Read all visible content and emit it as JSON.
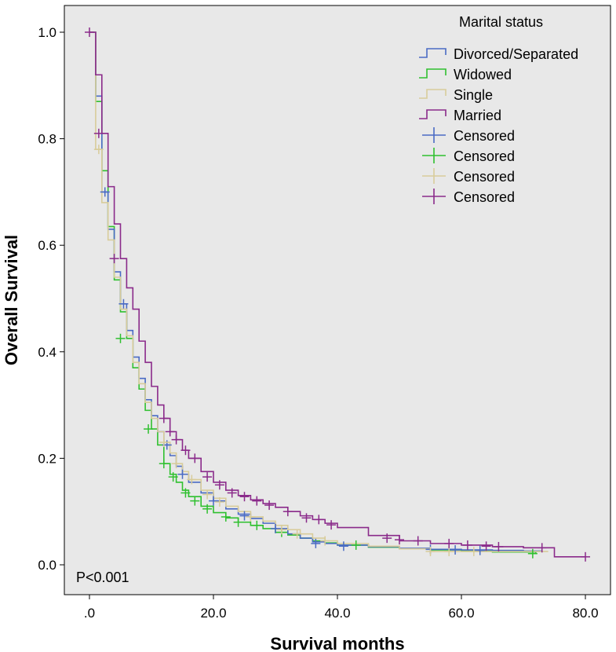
{
  "chart_data": {
    "type": "line",
    "subtype": "kaplan-meier",
    "xlabel": "Survival months",
    "ylabel": "Overall Survival",
    "xlim": [
      0,
      80
    ],
    "ylim": [
      0,
      1.0
    ],
    "x_ticks": [
      ".0",
      "20.0",
      "40.0",
      "60.0",
      "80.0"
    ],
    "x_tick_values": [
      0,
      20,
      40,
      60,
      80
    ],
    "y_ticks": [
      "0.0",
      "0.2",
      "0.4",
      "0.6",
      "0.8",
      "1.0"
    ],
    "y_tick_values": [
      0,
      0.2,
      0.4,
      0.6,
      0.8,
      1.0
    ],
    "grid": false,
    "background": "#e8e8e8",
    "legend": {
      "title": "Marital status",
      "position": "top-right",
      "entries": [
        {
          "label": "Divorced/Separated",
          "kind": "line",
          "color": "#4a6bc4"
        },
        {
          "label": "Widowed",
          "kind": "line",
          "color": "#2fc02f"
        },
        {
          "label": "Single",
          "kind": "line",
          "color": "#d8cc9a"
        },
        {
          "label": "Married",
          "kind": "line",
          "color": "#8a2a8a"
        },
        {
          "label": "Censored",
          "kind": "censor",
          "color": "#4a6bc4"
        },
        {
          "label": "Censored",
          "kind": "censor",
          "color": "#2fc02f"
        },
        {
          "label": "Censored",
          "kind": "censor",
          "color": "#d8cc9a"
        },
        {
          "label": "Censored",
          "kind": "censor",
          "color": "#8a2a8a"
        }
      ]
    },
    "annotation": "P<0.001",
    "series": [
      {
        "name": "Divorced/Separated",
        "color": "#4a6bc4",
        "x": [
          0,
          1,
          2,
          3,
          4,
          5,
          6,
          7,
          8,
          9,
          10,
          11,
          12,
          13,
          14,
          15,
          16,
          18,
          20,
          22,
          24,
          26,
          28,
          30,
          32,
          34,
          36,
          38,
          40,
          45,
          50,
          55,
          60,
          65,
          70,
          73
        ],
        "y": [
          1.0,
          0.88,
          0.7,
          0.63,
          0.55,
          0.49,
          0.44,
          0.39,
          0.35,
          0.31,
          0.28,
          0.25,
          0.225,
          0.205,
          0.185,
          0.17,
          0.155,
          0.135,
          0.12,
          0.105,
          0.095,
          0.087,
          0.078,
          0.068,
          0.058,
          0.05,
          0.043,
          0.04,
          0.037,
          0.034,
          0.031,
          0.029,
          0.028,
          0.027,
          0.026,
          0.026
        ],
        "censored": [
          [
            2.5,
            0.7
          ],
          [
            5.5,
            0.49
          ],
          [
            12.5,
            0.225
          ],
          [
            15,
            0.17
          ],
          [
            20,
            0.12
          ],
          [
            25,
            0.092
          ],
          [
            30,
            0.068
          ],
          [
            36.5,
            0.04
          ],
          [
            41,
            0.035
          ],
          [
            55,
            0.029
          ],
          [
            59,
            0.028
          ],
          [
            63,
            0.027
          ]
        ]
      },
      {
        "name": "Widowed",
        "color": "#2fc02f",
        "x": [
          0,
          1,
          2,
          3,
          4,
          5,
          6,
          7,
          8,
          9,
          10,
          11,
          12,
          13,
          14,
          15,
          16,
          18,
          20,
          22,
          24,
          26,
          28,
          30,
          32,
          34,
          36,
          38,
          40,
          45,
          50,
          55,
          60,
          65,
          72
        ],
        "y": [
          1.0,
          0.87,
          0.74,
          0.635,
          0.535,
          0.475,
          0.425,
          0.37,
          0.33,
          0.29,
          0.255,
          0.225,
          0.19,
          0.17,
          0.155,
          0.14,
          0.128,
          0.11,
          0.098,
          0.088,
          0.08,
          0.074,
          0.068,
          0.061,
          0.056,
          0.05,
          0.045,
          0.041,
          0.037,
          0.033,
          0.03,
          0.028,
          0.026,
          0.024,
          0.021
        ],
        "censored": [
          [
            5,
            0.425
          ],
          [
            9.5,
            0.255
          ],
          [
            12,
            0.19
          ],
          [
            13.5,
            0.165
          ],
          [
            15.5,
            0.135
          ],
          [
            17,
            0.12
          ],
          [
            19,
            0.105
          ],
          [
            22,
            0.09
          ],
          [
            24,
            0.08
          ],
          [
            27,
            0.074
          ],
          [
            31,
            0.061
          ],
          [
            43,
            0.037
          ],
          [
            71.5,
            0.021
          ]
        ]
      },
      {
        "name": "Single",
        "color": "#d8cc9a",
        "x": [
          0,
          1,
          2,
          3,
          4,
          5,
          6,
          7,
          8,
          9,
          10,
          11,
          12,
          13,
          14,
          15,
          16,
          18,
          20,
          22,
          24,
          26,
          28,
          30,
          32,
          34,
          36,
          38,
          40,
          45,
          50,
          55,
          60,
          65,
          70,
          74
        ],
        "y": [
          1.0,
          0.78,
          0.68,
          0.61,
          0.54,
          0.48,
          0.43,
          0.38,
          0.34,
          0.305,
          0.275,
          0.25,
          0.23,
          0.21,
          0.19,
          0.175,
          0.16,
          0.14,
          0.125,
          0.11,
          0.1,
          0.09,
          0.082,
          0.074,
          0.066,
          0.058,
          0.05,
          0.045,
          0.04,
          0.035,
          0.03,
          0.025,
          0.025,
          0.025,
          0.025,
          0.025
        ],
        "censored": [
          [
            1.5,
            0.78
          ],
          [
            12,
            0.23
          ],
          [
            14,
            0.19
          ],
          [
            16.5,
            0.16
          ],
          [
            19,
            0.132
          ],
          [
            21,
            0.118
          ],
          [
            26,
            0.09
          ],
          [
            31,
            0.066
          ],
          [
            33.5,
            0.058
          ],
          [
            38,
            0.045
          ],
          [
            55,
            0.025
          ],
          [
            58,
            0.025
          ],
          [
            62,
            0.025
          ]
        ]
      },
      {
        "name": "Married",
        "color": "#8a2a8a",
        "x": [
          0,
          1,
          2,
          3,
          4,
          5,
          6,
          7,
          8,
          9,
          10,
          11,
          12,
          13,
          14,
          15,
          16,
          18,
          20,
          22,
          24,
          26,
          28,
          30,
          32,
          34,
          36,
          38,
          40,
          45,
          50,
          55,
          60,
          65,
          70,
          75,
          80
        ],
        "y": [
          1.0,
          0.92,
          0.81,
          0.71,
          0.64,
          0.575,
          0.52,
          0.48,
          0.42,
          0.38,
          0.335,
          0.3,
          0.275,
          0.25,
          0.235,
          0.215,
          0.2,
          0.175,
          0.155,
          0.14,
          0.13,
          0.122,
          0.115,
          0.108,
          0.1,
          0.092,
          0.085,
          0.078,
          0.07,
          0.055,
          0.045,
          0.04,
          0.037,
          0.034,
          0.032,
          0.015,
          0.015
        ],
        "censored": [
          [
            0,
            1.0
          ],
          [
            1.5,
            0.81
          ],
          [
            4,
            0.575
          ],
          [
            12,
            0.275
          ],
          [
            13,
            0.25
          ],
          [
            14,
            0.235
          ],
          [
            15.5,
            0.215
          ],
          [
            17,
            0.2
          ],
          [
            19,
            0.165
          ],
          [
            21,
            0.15
          ],
          [
            23,
            0.135
          ],
          [
            25,
            0.128
          ],
          [
            27,
            0.12
          ],
          [
            29,
            0.112
          ],
          [
            32,
            0.1
          ],
          [
            35,
            0.088
          ],
          [
            37,
            0.085
          ],
          [
            39,
            0.075
          ],
          [
            48,
            0.05
          ],
          [
            50,
            0.047
          ],
          [
            53,
            0.045
          ],
          [
            58,
            0.04
          ],
          [
            61,
            0.037
          ],
          [
            64,
            0.035
          ],
          [
            66,
            0.034
          ],
          [
            73,
            0.032
          ],
          [
            80,
            0.015
          ]
        ]
      }
    ]
  }
}
